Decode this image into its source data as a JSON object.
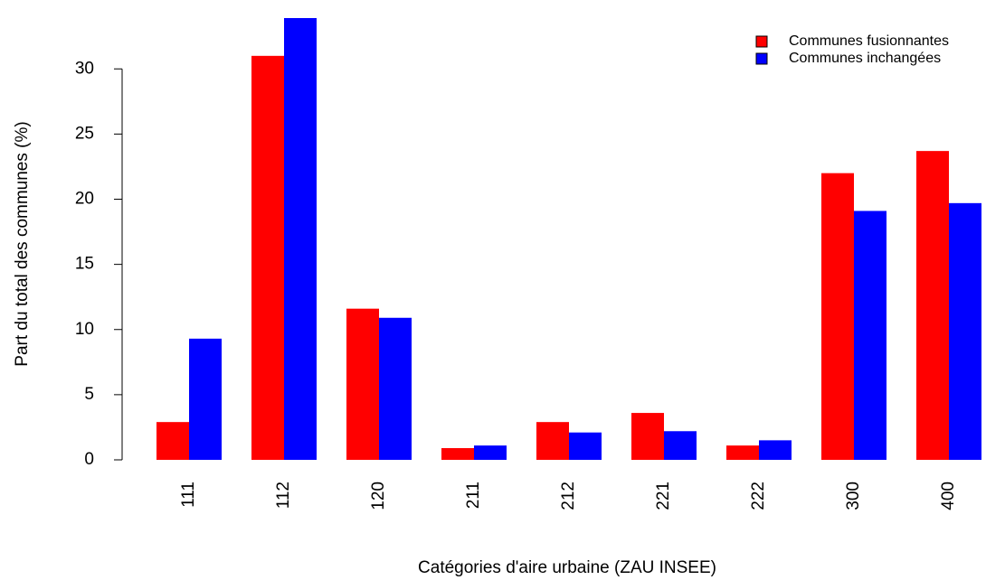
{
  "chart_data": {
    "type": "bar",
    "xlabel": "Catégories d'aire urbaine (ZAU INSEE)",
    "ylabel": "Part du total des communes (%)",
    "categories": [
      "111",
      "112",
      "120",
      "211",
      "212",
      "221",
      "222",
      "300",
      "400"
    ],
    "series": [
      {
        "name": "Communes fusionnantes",
        "color": "#ff0000",
        "values": [
          2.9,
          31.0,
          11.6,
          0.9,
          2.9,
          3.6,
          1.1,
          22.0,
          23.7
        ]
      },
      {
        "name": "Communes inchangées",
        "color": "#0000ff",
        "values": [
          9.3,
          33.9,
          10.9,
          1.1,
          2.1,
          2.2,
          1.5,
          19.1,
          19.7
        ]
      }
    ],
    "ylim": [
      0,
      33.9
    ],
    "yticks": [
      0,
      5,
      10,
      15,
      20,
      25,
      30
    ],
    "legend": "top-right",
    "grid": false
  }
}
